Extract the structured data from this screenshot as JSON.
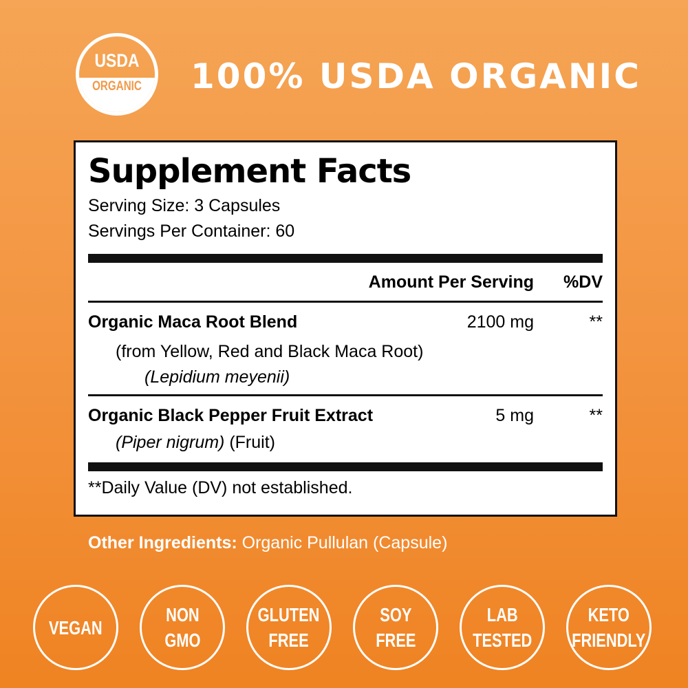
{
  "seal": {
    "top": "USDA",
    "bottom": "ORGANIC"
  },
  "headline": "100% USDA ORGANIC",
  "facts": {
    "title": "Supplement Facts",
    "serving_size": "Serving Size: 3 Capsules",
    "servings_per_container": "Servings Per Container: 60",
    "header_amount": "Amount Per Serving",
    "header_dv": "%DV",
    "ingredients": [
      {
        "name": "Organic Maca Root Blend",
        "sub": "(from Yellow, Red and Black Maca Root)",
        "latin": "(Lepidium meyenii)",
        "amount": "2100 mg",
        "dv": "**"
      },
      {
        "name": "Organic Black Pepper Fruit Extract",
        "latin": "(Piper nigrum)",
        "part": " (Fruit)",
        "amount": "5 mg",
        "dv": "**"
      }
    ],
    "footnote": "**Daily Value (DV) not established."
  },
  "other": {
    "label": "Other Ingredients:",
    "value": " Organic Pullulan (Capsule)"
  },
  "badges": [
    "VEGAN",
    "NON\nGMO",
    "GLUTEN\nFREE",
    "SOY\nFREE",
    "LAB\nTESTED",
    "KETO\nFRIENDLY"
  ]
}
